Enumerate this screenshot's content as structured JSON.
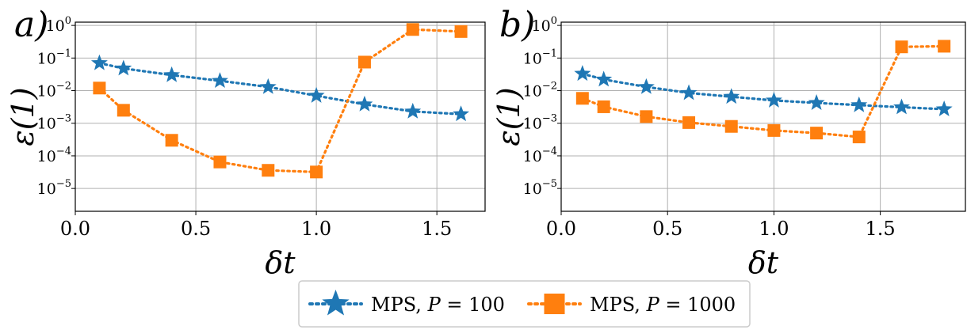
{
  "chart_data": [
    {
      "type": "line",
      "panel_label": "a)",
      "xlabel": "δt",
      "ylabel": "ε(1)",
      "yscale": "log",
      "xlim": [
        0.0,
        1.7
      ],
      "ylim_exponent": [
        -5.7,
        0.1
      ],
      "xticks": [
        0.0,
        0.5,
        1.0,
        1.5
      ],
      "xtick_labels": [
        "0.0",
        "0.5",
        "1.0",
        "1.5"
      ],
      "ytick_exponents": [
        0,
        -1,
        -2,
        -3,
        -4,
        -5
      ],
      "grid": true,
      "series": [
        {
          "name": "MPS, P = 100",
          "color": "#1f77b4",
          "marker": "star",
          "x": [
            0.1,
            0.2,
            0.4,
            0.6,
            0.8,
            1.0,
            1.2,
            1.4,
            1.6
          ],
          "y": [
            0.07,
            0.048,
            0.03,
            0.02,
            0.013,
            0.007,
            0.0038,
            0.0023,
            0.0019
          ]
        },
        {
          "name": "MPS, P = 1000",
          "color": "#ff7f0e",
          "marker": "square",
          "x": [
            0.1,
            0.2,
            0.4,
            0.6,
            0.8,
            1.0,
            1.2,
            1.4,
            1.6
          ],
          "y": [
            0.012,
            0.0025,
            0.0003,
            6.5e-05,
            3.6e-05,
            3.2e-05,
            0.075,
            0.75,
            0.65
          ]
        }
      ]
    },
    {
      "type": "line",
      "panel_label": "b)",
      "xlabel": "δt",
      "ylabel": "ε(1)",
      "yscale": "log",
      "xlim": [
        0.0,
        1.9
      ],
      "ylim_exponent": [
        -5.7,
        0.1
      ],
      "xticks": [
        0.0,
        0.5,
        1.0,
        1.5
      ],
      "xtick_labels": [
        "0.0",
        "0.5",
        "1.0",
        "1.5"
      ],
      "ytick_exponents": [
        0,
        -1,
        -2,
        -3,
        -4,
        -5
      ],
      "grid": true,
      "series": [
        {
          "name": "MPS, P = 100",
          "color": "#1f77b4",
          "marker": "star",
          "x": [
            0.1,
            0.2,
            0.4,
            0.6,
            0.8,
            1.0,
            1.2,
            1.4,
            1.6,
            1.8
          ],
          "y": [
            0.033,
            0.022,
            0.013,
            0.0085,
            0.0065,
            0.005,
            0.0042,
            0.0036,
            0.0031,
            0.0027
          ]
        },
        {
          "name": "MPS, P = 1000",
          "color": "#ff7f0e",
          "marker": "square",
          "x": [
            0.1,
            0.2,
            0.4,
            0.6,
            0.8,
            1.0,
            1.2,
            1.4,
            1.6,
            1.8
          ],
          "y": [
            0.0058,
            0.0032,
            0.0016,
            0.00105,
            0.0008,
            0.0006,
            0.0005,
            0.00038,
            0.22,
            0.23
          ]
        }
      ]
    }
  ],
  "legend": {
    "placement": "bottom-center",
    "entries": [
      {
        "prefix": "MPS, ",
        "var": "P",
        "value": " = 100",
        "color": "#1f77b4",
        "marker": "star"
      },
      {
        "prefix": "MPS, ",
        "var": "P",
        "value": " = 1000",
        "color": "#ff7f0e",
        "marker": "square"
      }
    ]
  }
}
